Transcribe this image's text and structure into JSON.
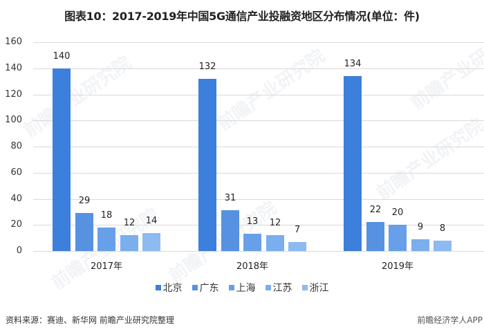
{
  "title": "图表10：2017-2019年中国5G通信产业投融资地区分布情况(单位：件)",
  "chart_data": {
    "type": "bar",
    "title": "图表10：2017-2019年中国5G通信产业投融资地区分布情况(单位：件)",
    "xlabel": "",
    "ylabel": "",
    "categories": [
      "2017年",
      "2018年",
      "2019年"
    ],
    "series": [
      {
        "name": "北京",
        "color": "#3c7fdc",
        "values": [
          140,
          132,
          134
        ]
      },
      {
        "name": "广东",
        "color": "#5691e2",
        "values": [
          29,
          31,
          22
        ]
      },
      {
        "name": "上海",
        "color": "#67a0e8",
        "values": [
          18,
          13,
          20
        ]
      },
      {
        "name": "江苏",
        "color": "#7aaeed",
        "values": [
          12,
          12,
          9
        ]
      },
      {
        "name": "浙江",
        "color": "#8cbaf1",
        "values": [
          14,
          7,
          8
        ]
      }
    ],
    "yticks": [
      0,
      20,
      40,
      60,
      80,
      100,
      120,
      140,
      160
    ],
    "ylim": [
      0,
      160
    ],
    "grid": true,
    "legend_position": "bottom"
  },
  "legend": [
    {
      "label": "北京",
      "color": "#3c7fdc"
    },
    {
      "label": "广东",
      "color": "#5691e2"
    },
    {
      "label": "上海",
      "color": "#67a0e8"
    },
    {
      "label": "江苏",
      "color": "#7aaeed"
    },
    {
      "label": "浙江",
      "color": "#8cbaf1"
    }
  ],
  "footer": {
    "source": "资料来源：赛迪、新华网 前瞻产业研究院整理",
    "brand": "前瞻经济学人APP"
  },
  "watermark": "前瞻产业研究院"
}
